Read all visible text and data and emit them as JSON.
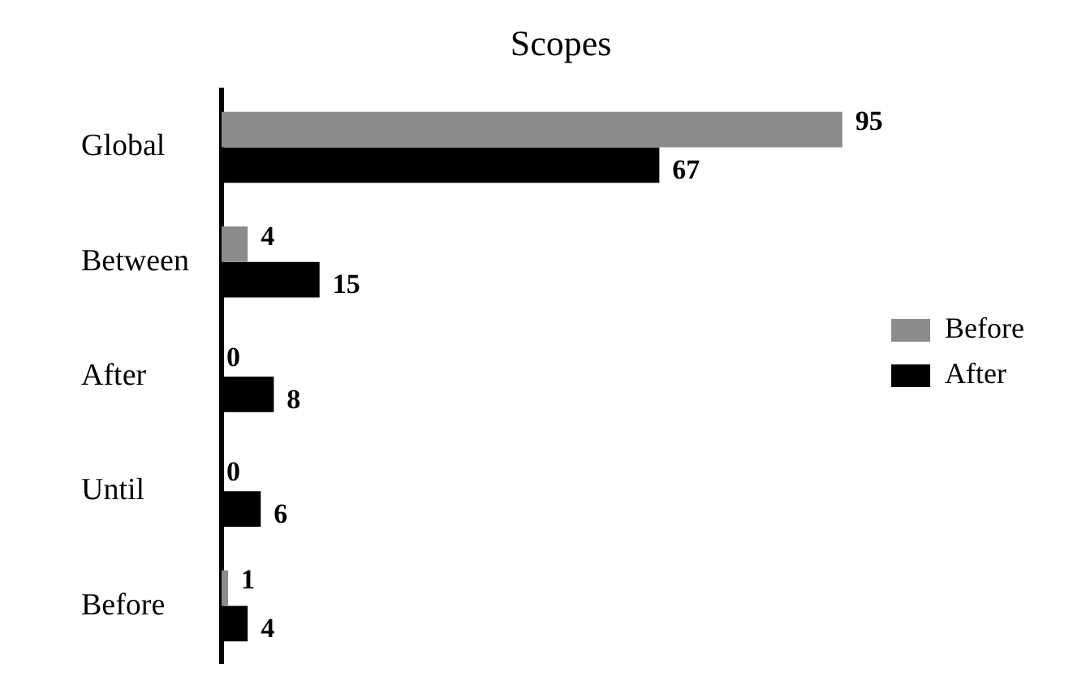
{
  "chart_data": {
    "type": "bar",
    "orientation": "horizontal",
    "title": "Scopes",
    "categories": [
      "Global",
      "Between",
      "After",
      "Until",
      "Before"
    ],
    "series": [
      {
        "name": "Before",
        "color": "#8c8c8c",
        "values": [
          95,
          4,
          0,
          0,
          1
        ]
      },
      {
        "name": "After",
        "color": "#000000",
        "values": [
          67,
          15,
          8,
          6,
          4
        ]
      }
    ],
    "data_labels": true,
    "legend": "right"
  }
}
